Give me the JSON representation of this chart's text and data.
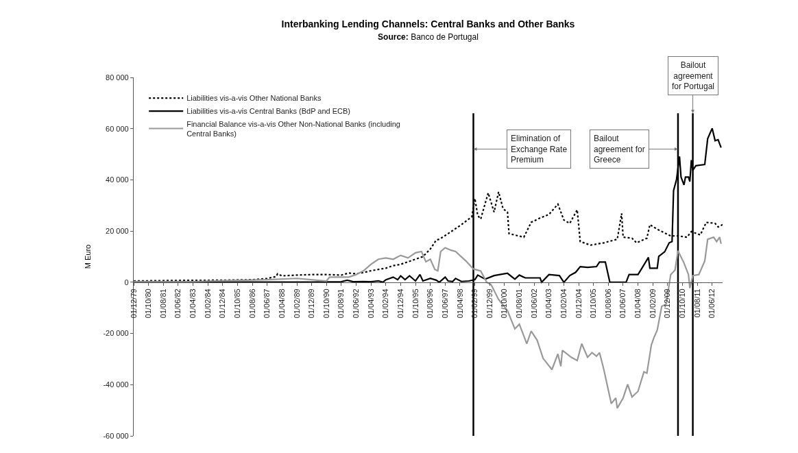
{
  "chart_data": {
    "type": "line",
    "title": "Interbanking Lending Channels: Central Banks and Other Banks",
    "subtitle": "Source: Banco de Portugal",
    "ylabel": "M Euro",
    "xlim": [
      "1979-12-01",
      "2013-01-01"
    ],
    "xticks": [
      {
        "value": "1979-12-01",
        "label": "01/12/79"
      },
      {
        "value": "1980-10-01",
        "label": "01/10/80"
      },
      {
        "value": "1981-08-01",
        "label": "01/08/81"
      },
      {
        "value": "1982-06-01",
        "label": "01/06/82"
      },
      {
        "value": "1983-04-01",
        "label": "01/04/83"
      },
      {
        "value": "1984-02-01",
        "label": "01/02/84"
      },
      {
        "value": "1984-12-01",
        "label": "01/12/84"
      },
      {
        "value": "1985-10-01",
        "label": "01/10/85"
      },
      {
        "value": "1986-08-01",
        "label": "01/08/86"
      },
      {
        "value": "1987-06-01",
        "label": "01/06/87"
      },
      {
        "value": "1988-04-01",
        "label": "01/04/88"
      },
      {
        "value": "1989-02-01",
        "label": "01/02/89"
      },
      {
        "value": "1989-12-01",
        "label": "01/12/89"
      },
      {
        "value": "1990-10-01",
        "label": "01/10/90"
      },
      {
        "value": "1991-08-01",
        "label": "01/08/91"
      },
      {
        "value": "1992-06-01",
        "label": "01/06/92"
      },
      {
        "value": "1993-04-01",
        "label": "01/04/93"
      },
      {
        "value": "1994-02-01",
        "label": "01/02/94"
      },
      {
        "value": "1994-12-01",
        "label": "01/12/94"
      },
      {
        "value": "1995-10-01",
        "label": "01/10/95"
      },
      {
        "value": "1996-08-01",
        "label": "01/08/96"
      },
      {
        "value": "1997-06-01",
        "label": "01/06/97"
      },
      {
        "value": "1998-04-01",
        "label": "01/04/98"
      },
      {
        "value": "1999-02-01",
        "label": "01/02/99"
      },
      {
        "value": "1999-12-01",
        "label": "01/12/99"
      },
      {
        "value": "2000-10-01",
        "label": "01/10/00"
      },
      {
        "value": "2001-08-01",
        "label": "01/08/01"
      },
      {
        "value": "2002-06-01",
        "label": "01/06/02"
      },
      {
        "value": "2003-04-01",
        "label": "01/04/03"
      },
      {
        "value": "2004-02-01",
        "label": "01/02/04"
      },
      {
        "value": "2004-12-01",
        "label": "01/12/04"
      },
      {
        "value": "2005-10-01",
        "label": "01/10/05"
      },
      {
        "value": "2006-08-01",
        "label": "01/08/06"
      },
      {
        "value": "2007-06-01",
        "label": "01/06/07"
      },
      {
        "value": "2008-04-01",
        "label": "01/04/08"
      },
      {
        "value": "2009-02-01",
        "label": "01/02/09"
      },
      {
        "value": "2009-12-01",
        "label": "01/12/09"
      },
      {
        "value": "2010-10-01",
        "label": "01/10/10"
      },
      {
        "value": "2011-08-01",
        "label": "01/08/11"
      },
      {
        "value": "2012-06-01",
        "label": "01/06/12"
      }
    ],
    "ylim": [
      -60000,
      80000
    ],
    "yticks": [
      {
        "value": -60000,
        "label": "-60 000"
      },
      {
        "value": -40000,
        "label": "-40 000"
      },
      {
        "value": -20000,
        "label": "-20 000"
      },
      {
        "value": 0,
        "label": "0"
      },
      {
        "value": 20000,
        "label": "20 000"
      },
      {
        "value": 40000,
        "label": "40 000"
      },
      {
        "value": 60000,
        "label": "60 000"
      },
      {
        "value": 80000,
        "label": "80 000"
      }
    ],
    "legend": "top left",
    "marker": "none",
    "series": [
      {
        "name": "Liabilities vis-a-vis Other National Banks",
        "color": "#000000",
        "line_style": "dotted",
        "x": [
          "1979-12",
          "1982-06",
          "1984-12",
          "1986-08",
          "1987-06",
          "1987-12",
          "1988-01",
          "1988-04",
          "1989-02",
          "1989-12",
          "1990-10",
          "1991-08",
          "1992-01",
          "1992-06",
          "1992-11",
          "1993-04",
          "1993-09",
          "1994-02",
          "1994-07",
          "1994-12",
          "1995-05",
          "1995-10",
          "1996-03",
          "1996-08",
          "1996-12",
          "1997-02",
          "1997-08",
          "1998-05",
          "1998-12",
          "1999-02",
          "1999-04",
          "1999-06",
          "1999-11",
          "2000-03",
          "2000-06",
          "2000-09",
          "2000-12",
          "2001-01",
          "2001-11",
          "2002-04",
          "2002-10",
          "2003-04",
          "2003-10",
          "2004-02",
          "2004-06",
          "2004-11",
          "2005-01",
          "2005-08",
          "2006-05",
          "2007-02",
          "2007-05",
          "2007-06",
          "2007-12",
          "2008-03",
          "2008-10",
          "2008-12",
          "2009-05",
          "2010-02",
          "2010-07",
          "2011-01",
          "2011-04",
          "2011-10",
          "2012-02",
          "2012-08",
          "2012-10",
          "2013-01"
        ],
        "values": [
          500,
          700,
          800,
          1000,
          1500,
          2200,
          3300,
          2500,
          2800,
          3000,
          3000,
          2800,
          3600,
          3300,
          3800,
          4500,
          5000,
          5500,
          6500,
          7000,
          8000,
          9000,
          10000,
          13000,
          16500,
          16800,
          19000,
          22500,
          25600,
          32700,
          26000,
          24700,
          34900,
          27400,
          35300,
          28700,
          27400,
          19000,
          17600,
          23400,
          25100,
          26500,
          30500,
          24300,
          23000,
          28300,
          15900,
          14500,
          15400,
          16800,
          26900,
          17600,
          17200,
          15400,
          17200,
          22500,
          20700,
          18100,
          18100,
          17600,
          19800,
          18500,
          23400,
          23000,
          21600,
          22500
        ]
      },
      {
        "name": "Liabilities vis-a-vis Central Banks (BdP and ECB)",
        "color": "#000000",
        "line_style": "solid",
        "x": [
          "1979-12",
          "1984-12",
          "1989-12",
          "1991-08",
          "1991-12",
          "1992-04",
          "1992-11",
          "1993-04",
          "1993-09",
          "1993-12",
          "1994-02",
          "1994-07",
          "1994-10",
          "1994-12",
          "1995-03",
          "1995-06",
          "1995-10",
          "1996-01",
          "1996-03",
          "1996-08",
          "1996-12",
          "1997-02",
          "1997-06",
          "1997-08",
          "1997-11",
          "1998-01",
          "1998-05",
          "1998-10",
          "1999-02",
          "1999-04",
          "1999-09",
          "2000-03",
          "2000-12",
          "2001-05",
          "2001-08",
          "2001-12",
          "2002-10",
          "2002-11",
          "2003-04",
          "2003-11",
          "2004-02",
          "2004-06",
          "2004-10",
          "2005-01",
          "2005-06",
          "2005-12",
          "2006-02",
          "2006-06",
          "2006-09",
          "2007-03",
          "2007-08",
          "2007-10",
          "2008-04",
          "2008-07",
          "2008-11",
          "2008-12",
          "2009-05",
          "2009-06",
          "2009-10",
          "2010-01",
          "2010-03",
          "2010-04",
          "2010-06",
          "2010-08",
          "2010-09",
          "2010-11",
          "2010-12",
          "2011-02",
          "2011-03",
          "2011-04",
          "2011-05",
          "2011-07",
          "2012-01",
          "2012-03",
          "2012-06",
          "2012-08",
          "2012-10",
          "2012-12"
        ],
        "values": [
          200,
          100,
          100,
          200,
          800,
          200,
          300,
          200,
          500,
          0,
          1000,
          2000,
          1000,
          2500,
          1000,
          2500,
          500,
          3000,
          500,
          1500,
          800,
          0,
          2000,
          500,
          300,
          1500,
          300,
          500,
          1000,
          2800,
          1200,
          2600,
          3500,
          1200,
          2800,
          1700,
          1700,
          0,
          3000,
          2600,
          0,
          2600,
          3900,
          6100,
          5800,
          6100,
          7900,
          7900,
          0,
          0,
          0,
          3000,
          3000,
          5800,
          9700,
          5500,
          5500,
          10100,
          11900,
          15400,
          15900,
          35800,
          40200,
          49100,
          41100,
          38000,
          41100,
          41100,
          39300,
          47700,
          43700,
          45500,
          46000,
          56100,
          60100,
          55300,
          55700,
          52600
        ]
      },
      {
        "name": "Financial Balance vis-a-vis Other Non-National Banks (including Central Banks)",
        "color": "#999999",
        "line_style": "solid",
        "x": [
          "1979-12",
          "1983-04",
          "1984-12",
          "1987-06",
          "1989-02",
          "1990-10",
          "1990-12",
          "1992-01",
          "1992-06",
          "1992-11",
          "1993-04",
          "1993-09",
          "1994-02",
          "1994-07",
          "1994-12",
          "1995-05",
          "1995-10",
          "1996-02",
          "1996-05",
          "1996-08",
          "1996-11",
          "1997-01",
          "1997-03",
          "1997-06",
          "1997-10",
          "1998-01",
          "1998-08",
          "1999-01",
          "1999-06",
          "1999-10",
          "2000-01",
          "2000-06",
          "2000-12",
          "2001-05",
          "2001-08",
          "2002-01",
          "2002-04",
          "2002-08",
          "2002-12",
          "2003-06",
          "2003-10",
          "2003-12",
          "2004-01",
          "2004-07",
          "2004-11",
          "2005-02",
          "2005-06",
          "2005-09",
          "2005-12",
          "2006-02",
          "2006-05",
          "2006-10",
          "2007-01",
          "2007-02",
          "2007-06",
          "2007-09",
          "2007-12",
          "2008-04",
          "2008-08",
          "2008-10",
          "2009-01",
          "2009-03",
          "2009-05",
          "2009-08",
          "2009-11",
          "2010-02",
          "2010-05",
          "2010-07",
          "2010-11",
          "2011-02",
          "2011-03",
          "2011-05",
          "2011-09",
          "2012-01",
          "2012-03",
          "2012-07",
          "2012-09",
          "2012-11",
          "2012-12"
        ],
        "values": [
          300,
          300,
          600,
          1000,
          1500,
          500,
          2000,
          2000,
          3000,
          4500,
          7000,
          9000,
          9500,
          9000,
          10500,
          9500,
          11500,
          12000,
          8000,
          9000,
          5000,
          4500,
          12000,
          13500,
          12500,
          12000,
          8300,
          5200,
          4400,
          0,
          -1000,
          -6700,
          -11100,
          -18200,
          -16400,
          -24000,
          -19100,
          -22600,
          -29700,
          -34100,
          -28000,
          -32800,
          -26600,
          -29300,
          -30600,
          -24000,
          -29300,
          -27500,
          -28900,
          -27500,
          -34100,
          -47400,
          -45200,
          -49200,
          -45200,
          -39900,
          -44800,
          -42600,
          -35000,
          -35500,
          -24400,
          -21300,
          -18700,
          -9400,
          -8500,
          3000,
          4800,
          12300,
          7500,
          3000,
          -2300,
          2600,
          3000,
          8300,
          16800,
          17600,
          15900,
          17600,
          15000
        ]
      }
    ],
    "ref_lines": [
      {
        "axis": "x",
        "value": "1999-01",
        "label": "Elimination of Exchange Rate Premium",
        "color": "#000000"
      },
      {
        "axis": "x",
        "value": "2010-07",
        "label": "Bailout agreement for Greece",
        "color": "#000000"
      },
      {
        "axis": "x",
        "value": "2011-05",
        "label": "Bailout agreement for Portugal",
        "color": "#000000"
      }
    ]
  }
}
